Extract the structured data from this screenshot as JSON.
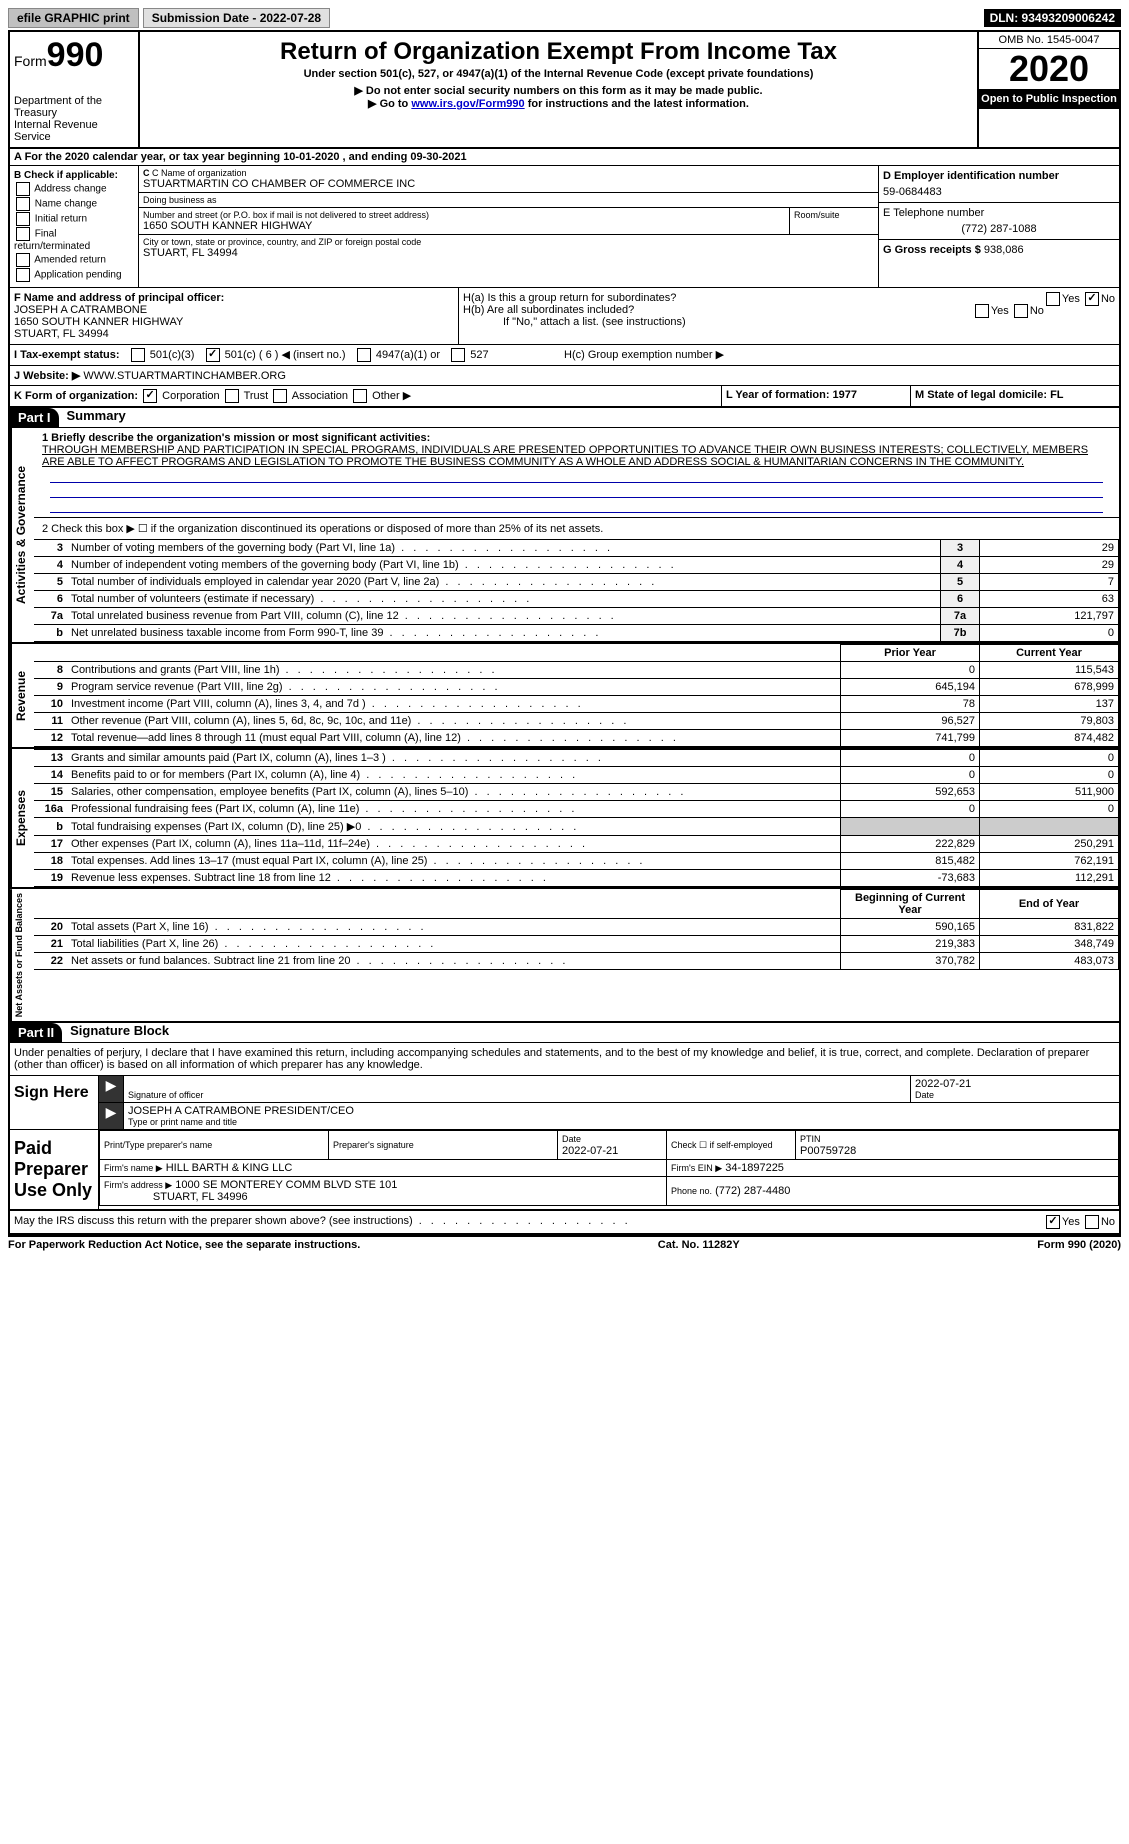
{
  "topbar": {
    "efile": "efile GRAPHIC print",
    "submission_label": "Submission Date - 2022-07-28",
    "dln": "DLN: 93493209006242"
  },
  "header": {
    "form_prefix": "Form",
    "form_number": "990",
    "dept1": "Department of the Treasury",
    "dept2": "Internal Revenue Service",
    "title": "Return of Organization Exempt From Income Tax",
    "subtitle": "Under section 501(c), 527, or 4947(a)(1) of the Internal Revenue Code (except private foundations)",
    "note1": "▶ Do not enter social security numbers on this form as it may be made public.",
    "note2_pre": "▶ Go to ",
    "note2_link": "www.irs.gov/Form990",
    "note2_post": " for instructions and the latest information.",
    "omb": "OMB No. 1545-0047",
    "year": "2020",
    "open": "Open to Public Inspection"
  },
  "row_a": "A For the 2020 calendar year, or tax year beginning 10-01-2020    , and ending 09-30-2021",
  "section_b": {
    "title": "B Check if applicable:",
    "opts": [
      "Address change",
      "Name change",
      "Initial return",
      "Final return/terminated",
      "Amended return",
      "Application pending"
    ]
  },
  "section_c": {
    "name_label": "C Name of organization",
    "name": "STUARTMARTIN CO CHAMBER OF COMMERCE INC",
    "dba_label": "Doing business as",
    "dba": "",
    "addr_label": "Number and street (or P.O. box if mail is not delivered to street address)",
    "addr": "1650 SOUTH KANNER HIGHWAY",
    "room_label": "Room/suite",
    "city_label": "City or town, state or province, country, and ZIP or foreign postal code",
    "city": "STUART, FL  34994"
  },
  "section_d": {
    "ein_label": "D Employer identification number",
    "ein": "59-0684483",
    "tel_label": "E Telephone number",
    "tel": "(772) 287-1088",
    "gross_label": "G Gross receipts $",
    "gross": "938,086"
  },
  "section_f": {
    "label": "F Name and address of principal officer:",
    "name": "JOSEPH A CATRAMBONE",
    "addr1": "1650 SOUTH KANNER HIGHWAY",
    "addr2": "STUART, FL  34994"
  },
  "section_h": {
    "ha": "H(a)  Is this a group return for subordinates?",
    "hb": "H(b)  Are all subordinates included?",
    "hb_note": "If \"No,\" attach a list. (see instructions)",
    "hc": "H(c)  Group exemption number ▶"
  },
  "row_i": {
    "label": "I   Tax-exempt status:",
    "opts": {
      "501c3": "501(c)(3)",
      "501c": "501(c) ( 6 ) ◀ (insert no.)",
      "4947": "4947(a)(1) or",
      "527": "527"
    }
  },
  "row_j": {
    "label": "J   Website: ▶",
    "value": "WWW.STUARTMARTINCHAMBER.ORG"
  },
  "row_k": {
    "label": "K Form of organization:",
    "corp": "Corporation",
    "trust": "Trust",
    "assoc": "Association",
    "other": "Other ▶"
  },
  "row_l": "L Year of formation: 1977",
  "row_m": "M State of legal domicile: FL",
  "part1": {
    "hdr": "Part I",
    "title": "Summary",
    "line1_label": "1  Briefly describe the organization's mission or most significant activities:",
    "mission": "THROUGH MEMBERSHIP AND PARTICIPATION IN SPECIAL PROGRAMS, INDIVIDUALS ARE PRESENTED OPPORTUNITIES TO ADVANCE THEIR OWN BUSINESS INTERESTS; COLLECTIVELY, MEMBERS ARE ABLE TO AFFECT PROGRAMS AND LEGISLATION TO PROMOTE THE BUSINESS COMMUNITY AS A WHOLE AND ADDRESS SOCIAL & HUMANITARIAN CONCERNS IN THE COMMUNITY.",
    "line2": "2   Check this box ▶ ☐ if the organization discontinued its operations or disposed of more than 25% of its net assets.",
    "governance_label": "Activities & Governance",
    "revenue_label": "Revenue",
    "expenses_label": "Expenses",
    "netassets_label": "Net Assets or Fund Balances",
    "gov_rows": [
      {
        "num": "3",
        "desc": "Number of voting members of the governing body (Part VI, line 1a)",
        "box": "3",
        "val": "29"
      },
      {
        "num": "4",
        "desc": "Number of independent voting members of the governing body (Part VI, line 1b)",
        "box": "4",
        "val": "29"
      },
      {
        "num": "5",
        "desc": "Total number of individuals employed in calendar year 2020 (Part V, line 2a)",
        "box": "5",
        "val": "7"
      },
      {
        "num": "6",
        "desc": "Total number of volunteers (estimate if necessary)",
        "box": "6",
        "val": "63"
      },
      {
        "num": "7a",
        "desc": "Total unrelated business revenue from Part VIII, column (C), line 12",
        "box": "7a",
        "val": "121,797"
      },
      {
        "num": "b",
        "desc": "Net unrelated business taxable income from Form 990-T, line 39",
        "box": "7b",
        "val": "0"
      }
    ],
    "prior_hdr": "Prior Year",
    "current_hdr": "Current Year",
    "rev_rows": [
      {
        "num": "8",
        "desc": "Contributions and grants (Part VIII, line 1h)",
        "prior": "0",
        "curr": "115,543"
      },
      {
        "num": "9",
        "desc": "Program service revenue (Part VIII, line 2g)",
        "prior": "645,194",
        "curr": "678,999"
      },
      {
        "num": "10",
        "desc": "Investment income (Part VIII, column (A), lines 3, 4, and 7d )",
        "prior": "78",
        "curr": "137"
      },
      {
        "num": "11",
        "desc": "Other revenue (Part VIII, column (A), lines 5, 6d, 8c, 9c, 10c, and 11e)",
        "prior": "96,527",
        "curr": "79,803"
      },
      {
        "num": "12",
        "desc": "Total revenue—add lines 8 through 11 (must equal Part VIII, column (A), line 12)",
        "prior": "741,799",
        "curr": "874,482"
      }
    ],
    "exp_rows": [
      {
        "num": "13",
        "desc": "Grants and similar amounts paid (Part IX, column (A), lines 1–3 )",
        "prior": "0",
        "curr": "0"
      },
      {
        "num": "14",
        "desc": "Benefits paid to or for members (Part IX, column (A), line 4)",
        "prior": "0",
        "curr": "0"
      },
      {
        "num": "15",
        "desc": "Salaries, other compensation, employee benefits (Part IX, column (A), lines 5–10)",
        "prior": "592,653",
        "curr": "511,900"
      },
      {
        "num": "16a",
        "desc": "Professional fundraising fees (Part IX, column (A), line 11e)",
        "prior": "0",
        "curr": "0"
      },
      {
        "num": "b",
        "desc": "Total fundraising expenses (Part IX, column (D), line 25) ▶0",
        "prior": "",
        "curr": ""
      },
      {
        "num": "17",
        "desc": "Other expenses (Part IX, column (A), lines 11a–11d, 11f–24e)",
        "prior": "222,829",
        "curr": "250,291"
      },
      {
        "num": "18",
        "desc": "Total expenses. Add lines 13–17 (must equal Part IX, column (A), line 25)",
        "prior": "815,482",
        "curr": "762,191"
      },
      {
        "num": "19",
        "desc": "Revenue less expenses. Subtract line 18 from line 12",
        "prior": "-73,683",
        "curr": "112,291"
      }
    ],
    "begin_hdr": "Beginning of Current Year",
    "end_hdr": "End of Year",
    "net_rows": [
      {
        "num": "20",
        "desc": "Total assets (Part X, line 16)",
        "prior": "590,165",
        "curr": "831,822"
      },
      {
        "num": "21",
        "desc": "Total liabilities (Part X, line 26)",
        "prior": "219,383",
        "curr": "348,749"
      },
      {
        "num": "22",
        "desc": "Net assets or fund balances. Subtract line 21 from line 20",
        "prior": "370,782",
        "curr": "483,073"
      }
    ]
  },
  "part2": {
    "hdr": "Part II",
    "title": "Signature Block",
    "declaration": "Under penalties of perjury, I declare that I have examined this return, including accompanying schedules and statements, and to the best of my knowledge and belief, it is true, correct, and complete. Declaration of preparer (other than officer) is based on all information of which preparer has any knowledge.",
    "sign_here": "Sign Here",
    "sig_officer": "Signature of officer",
    "sig_date": "2022-07-21",
    "sig_name": "JOSEPH A CATRAMBONE  PRESIDENT/CEO",
    "sig_name_label": "Type or print name and title",
    "paid": "Paid Preparer Use Only",
    "prep_name_label": "Print/Type preparer's name",
    "prep_sig_label": "Preparer's signature",
    "prep_date_label": "Date",
    "prep_date": "2022-07-21",
    "prep_check": "Check ☐ if self-employed",
    "ptin_label": "PTIN",
    "ptin": "P00759728",
    "firm_name_label": "Firm's name    ▶",
    "firm_name": "HILL BARTH & KING LLC",
    "firm_ein_label": "Firm's EIN ▶",
    "firm_ein": "34-1897225",
    "firm_addr_label": "Firm's address ▶",
    "firm_addr1": "1000 SE MONTEREY COMM BLVD STE 101",
    "firm_addr2": "STUART, FL  34996",
    "firm_phone_label": "Phone no.",
    "firm_phone": "(772) 287-4480",
    "discuss": "May the IRS discuss this return with the preparer shown above? (see instructions)"
  },
  "footer": {
    "left": "For Paperwork Reduction Act Notice, see the separate instructions.",
    "center": "Cat. No. 11282Y",
    "right": "Form 990 (2020)"
  }
}
